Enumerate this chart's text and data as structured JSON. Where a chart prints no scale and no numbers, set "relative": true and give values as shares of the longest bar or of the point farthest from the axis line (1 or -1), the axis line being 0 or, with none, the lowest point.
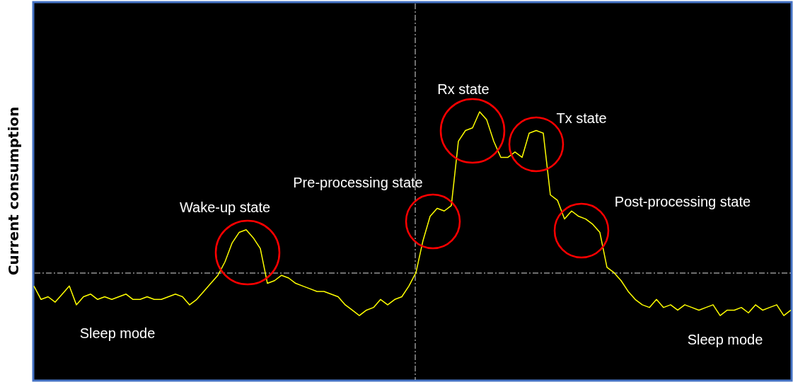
{
  "chart_data": {
    "type": "line",
    "ylabel": "Current consumption",
    "relative": true,
    "categories": [
      null,
      null,
      null,
      null,
      null,
      null,
      null,
      null,
      null,
      null,
      null,
      null,
      null,
      null,
      null,
      null,
      null,
      null,
      null,
      null,
      null,
      null,
      null,
      null,
      null,
      null,
      null,
      null,
      null,
      null,
      null,
      null,
      null,
      null,
      null,
      null,
      null,
      null,
      null,
      null,
      null,
      null,
      null,
      null,
      null,
      null,
      null,
      null,
      null,
      null,
      null,
      null,
      null,
      null,
      null,
      null,
      null,
      null,
      null,
      null,
      null,
      null,
      null,
      null,
      null,
      null,
      null,
      null,
      null,
      null,
      null,
      null,
      null,
      null,
      null,
      null,
      null,
      null,
      null,
      null,
      null,
      null,
      null,
      null,
      null,
      null,
      null,
      null,
      null,
      null,
      null,
      null,
      null,
      null,
      null,
      null,
      null,
      null,
      null,
      null,
      null,
      null,
      null,
      null,
      null,
      null,
      null,
      null
    ],
    "series": [
      {
        "color": "#ffff00",
        "values": [
          0.35,
          0.3,
          0.31,
          0.29,
          0.32,
          0.35,
          0.28,
          0.31,
          0.32,
          0.3,
          0.31,
          0.3,
          0.31,
          0.32,
          0.3,
          0.3,
          0.31,
          0.3,
          0.3,
          0.31,
          0.32,
          0.31,
          0.28,
          0.3,
          0.33,
          0.36,
          0.39,
          0.44,
          0.51,
          0.55,
          0.56,
          0.53,
          0.49,
          0.36,
          0.37,
          0.39,
          0.38,
          0.36,
          0.35,
          0.34,
          0.33,
          0.33,
          0.32,
          0.31,
          0.28,
          0.26,
          0.24,
          0.26,
          0.27,
          0.3,
          0.28,
          0.3,
          0.31,
          0.35,
          0.4,
          0.52,
          0.61,
          0.64,
          0.63,
          0.65,
          0.89,
          0.93,
          0.94,
          1,
          0.97,
          0.89,
          0.83,
          0.83,
          0.85,
          0.83,
          0.92,
          0.93,
          0.92,
          0.69,
          0.67,
          0.6,
          0.63,
          0.61,
          0.6,
          0.58,
          0.55,
          0.42,
          0.4,
          0.37,
          0.33,
          0.3,
          0.28,
          0.27,
          0.3,
          0.27,
          0.28,
          0.26,
          0.28,
          0.27,
          0.26,
          0.27,
          0.28,
          0.24,
          0.26,
          0.26,
          0.27,
          0.25,
          0.28,
          0.26,
          0.27,
          0.28,
          0.24,
          0.26
        ]
      }
    ],
    "annotations": [
      "Wake-up state",
      "Pre-processing state",
      "Rx state",
      "Tx state",
      "Post-processing state",
      "Sleep mode",
      "Sleep mode"
    ]
  }
}
